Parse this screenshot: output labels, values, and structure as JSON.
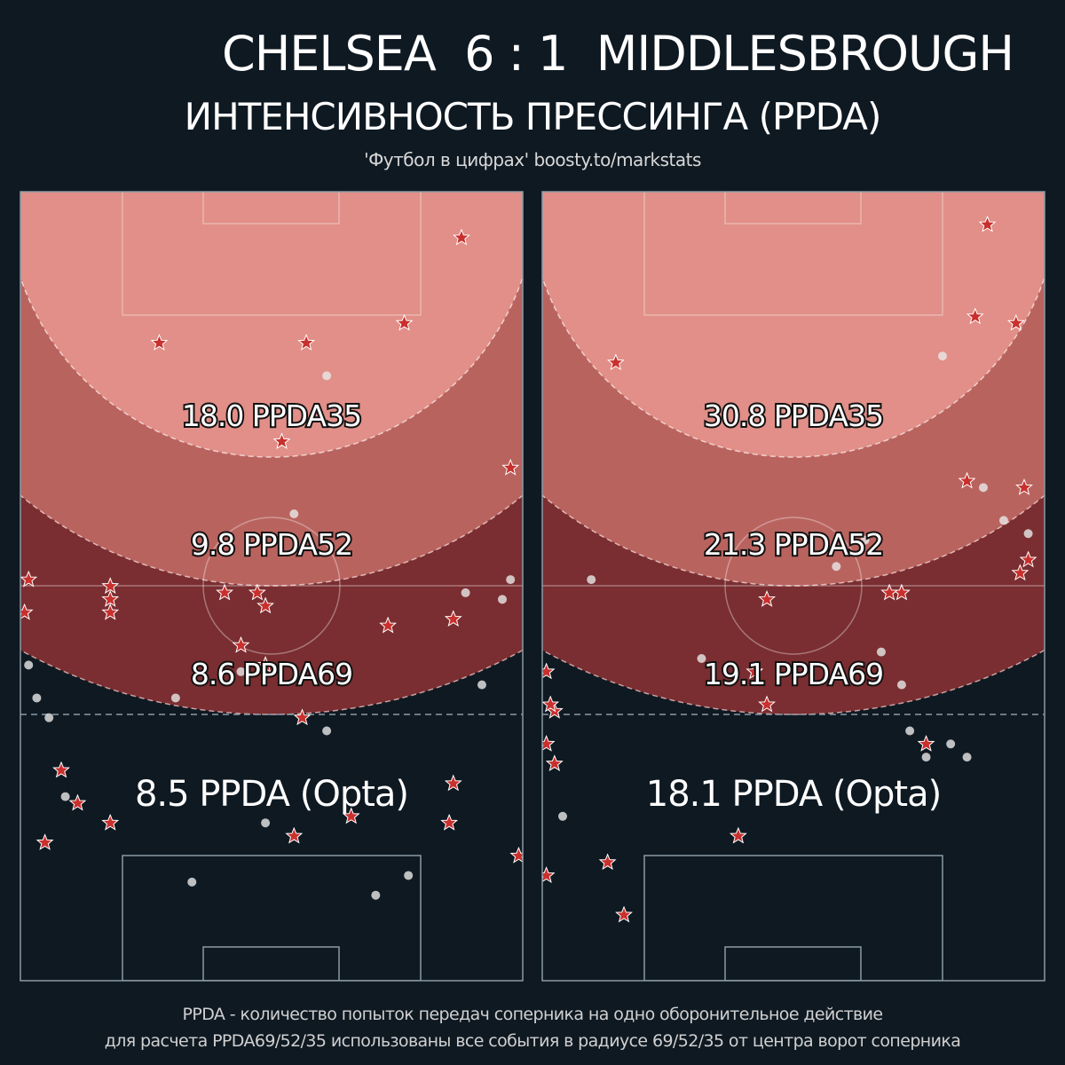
{
  "header": {
    "title": "CHELSEA  6 : 1  MIDDLESBROUGH",
    "subtitle": "ИНТЕНСИВНОСТЬ ПРЕССИНГА (PPDA)",
    "credit": "'Футбол в цифрах' boosty.to/markstats"
  },
  "footer": {
    "line1": "PPDA - количество попыток передач соперника на одно оборонительное действие",
    "line2": "для расчета PPDA69/52/35 использованы все события в радиусе 69/52/35 от центра ворот соперника"
  },
  "colors": {
    "background": "#0f1922",
    "zone35": "#e18f88",
    "zone52": "#b9635f",
    "zone69": "#7a2e31",
    "star": "#c8302e",
    "dot": "#e8e8e8"
  },
  "chart_data": [
    {
      "type": "scatter",
      "team": "Chelsea",
      "ppda_labels": {
        "ppda69": "8.6 PPDA69",
        "ppda52": "9.8 PPDA52",
        "ppda35": "18.0 PPDA35",
        "opta": "8.5 PPDA (Opta)"
      },
      "ppda_values": {
        "ppda69": 8.6,
        "ppda52": 9.8,
        "ppda35": 18.0,
        "opta": 8.5
      },
      "series": [
        {
          "marker": "star",
          "points": [
            [
              108,
              7
            ],
            [
              94,
              20
            ],
            [
              34,
              23
            ],
            [
              70,
              23
            ],
            [
              64,
              38
            ],
            [
              120,
              42
            ],
            [
              2,
              59
            ],
            [
              22,
              60
            ],
            [
              22,
              62
            ],
            [
              1,
              64
            ],
            [
              22,
              64
            ],
            [
              50,
              61
            ],
            [
              58,
              61
            ],
            [
              60,
              63
            ],
            [
              90,
              66
            ],
            [
              106,
              65
            ],
            [
              54,
              69
            ],
            [
              60,
              72
            ],
            [
              69,
              80
            ],
            [
              10,
              88
            ],
            [
              106,
              90
            ],
            [
              22,
              96
            ],
            [
              81,
              95
            ],
            [
              67,
              98
            ],
            [
              105,
              96
            ],
            [
              6,
              99
            ],
            [
              14,
              93
            ],
            [
              122,
              101
            ]
          ]
        },
        {
          "marker": "dot",
          "points": [
            [
              75,
              28
            ],
            [
              67,
              49
            ],
            [
              113,
              75
            ],
            [
              120,
              59
            ],
            [
              109,
              61
            ],
            [
              2,
              72
            ],
            [
              54,
              73
            ],
            [
              75,
              82
            ],
            [
              4,
              77
            ],
            [
              38,
              77
            ],
            [
              7,
              80
            ],
            [
              95,
              104
            ],
            [
              11,
              92
            ],
            [
              60,
              96
            ],
            [
              118,
              62
            ],
            [
              87,
              107
            ],
            [
              42,
              105
            ]
          ]
        }
      ]
    },
    {
      "type": "scatter",
      "team": "Middlesbrough",
      "ppda_labels": {
        "ppda69": "19.1 PPDA69",
        "ppda52": "21.3 PPDA52",
        "ppda35": "30.8 PPDA35",
        "opta": "18.1 PPDA (Opta)"
      },
      "ppda_values": {
        "ppda69": 19.1,
        "ppda52": 21.3,
        "ppda35": 30.8,
        "opta": 18.1
      },
      "series": [
        {
          "marker": "star",
          "points": [
            [
              116,
              20
            ],
            [
              106,
              19
            ],
            [
              109,
              5
            ],
            [
              18,
              26
            ],
            [
              104,
              44
            ],
            [
              118,
              45
            ],
            [
              119,
              56
            ],
            [
              117,
              58
            ],
            [
              88,
              61
            ],
            [
              85,
              61
            ],
            [
              94,
              84
            ],
            [
              1,
              84
            ],
            [
              3,
              79
            ],
            [
              2,
              78
            ],
            [
              3,
              87
            ],
            [
              1,
              73
            ],
            [
              16,
              102
            ],
            [
              20,
              110
            ],
            [
              1,
              104
            ],
            [
              48,
              98
            ],
            [
              52,
              73
            ],
            [
              55,
              78
            ],
            [
              55,
              62
            ]
          ]
        },
        {
          "marker": "dot",
          "points": [
            [
              98,
              25
            ],
            [
              79,
              53
            ],
            [
              113,
              50
            ],
            [
              119,
              52
            ],
            [
              108,
              45
            ],
            [
              39,
              71
            ],
            [
              12,
              59
            ],
            [
              100,
              84
            ],
            [
              104,
              86
            ],
            [
              5,
              95
            ],
            [
              73,
              73
            ],
            [
              72,
              57
            ],
            [
              83,
              70
            ],
            [
              88,
              75
            ],
            [
              90,
              82
            ],
            [
              94,
              86
            ]
          ]
        }
      ]
    }
  ]
}
